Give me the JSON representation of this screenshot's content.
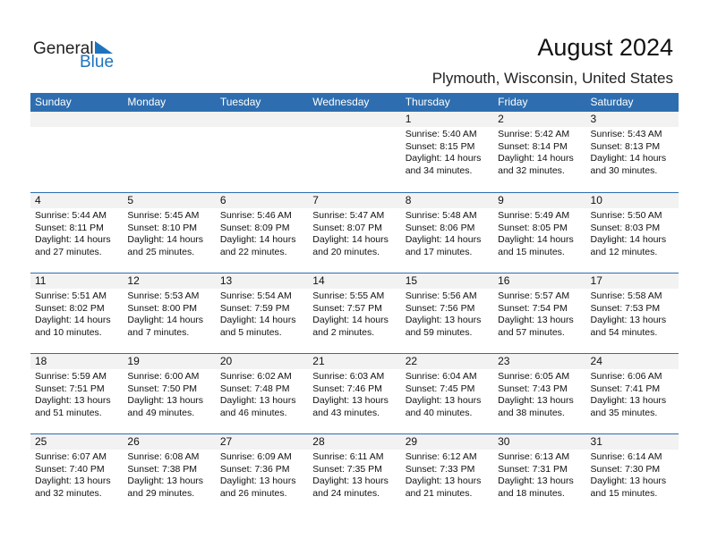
{
  "logo": {
    "general": "General",
    "blue": "Blue"
  },
  "title": "August 2024",
  "location": "Plymouth, Wisconsin, United States",
  "colors": {
    "header": "#2e6eb0",
    "band": "#f2f2f2",
    "logo_blue": "#1e73be"
  },
  "days_of_week": [
    "Sunday",
    "Monday",
    "Tuesday",
    "Wednesday",
    "Thursday",
    "Friday",
    "Saturday"
  ],
  "weeks": [
    [
      null,
      null,
      null,
      null,
      {
        "day": "1",
        "sunrise": "Sunrise: 5:40 AM",
        "sunset": "Sunset: 8:15 PM",
        "daylight1": "Daylight: 14 hours",
        "daylight2": "and 34 minutes."
      },
      {
        "day": "2",
        "sunrise": "Sunrise: 5:42 AM",
        "sunset": "Sunset: 8:14 PM",
        "daylight1": "Daylight: 14 hours",
        "daylight2": "and 32 minutes."
      },
      {
        "day": "3",
        "sunrise": "Sunrise: 5:43 AM",
        "sunset": "Sunset: 8:13 PM",
        "daylight1": "Daylight: 14 hours",
        "daylight2": "and 30 minutes."
      }
    ],
    [
      {
        "day": "4",
        "sunrise": "Sunrise: 5:44 AM",
        "sunset": "Sunset: 8:11 PM",
        "daylight1": "Daylight: 14 hours",
        "daylight2": "and 27 minutes."
      },
      {
        "day": "5",
        "sunrise": "Sunrise: 5:45 AM",
        "sunset": "Sunset: 8:10 PM",
        "daylight1": "Daylight: 14 hours",
        "daylight2": "and 25 minutes."
      },
      {
        "day": "6",
        "sunrise": "Sunrise: 5:46 AM",
        "sunset": "Sunset: 8:09 PM",
        "daylight1": "Daylight: 14 hours",
        "daylight2": "and 22 minutes."
      },
      {
        "day": "7",
        "sunrise": "Sunrise: 5:47 AM",
        "sunset": "Sunset: 8:07 PM",
        "daylight1": "Daylight: 14 hours",
        "daylight2": "and 20 minutes."
      },
      {
        "day": "8",
        "sunrise": "Sunrise: 5:48 AM",
        "sunset": "Sunset: 8:06 PM",
        "daylight1": "Daylight: 14 hours",
        "daylight2": "and 17 minutes."
      },
      {
        "day": "9",
        "sunrise": "Sunrise: 5:49 AM",
        "sunset": "Sunset: 8:05 PM",
        "daylight1": "Daylight: 14 hours",
        "daylight2": "and 15 minutes."
      },
      {
        "day": "10",
        "sunrise": "Sunrise: 5:50 AM",
        "sunset": "Sunset: 8:03 PM",
        "daylight1": "Daylight: 14 hours",
        "daylight2": "and 12 minutes."
      }
    ],
    [
      {
        "day": "11",
        "sunrise": "Sunrise: 5:51 AM",
        "sunset": "Sunset: 8:02 PM",
        "daylight1": "Daylight: 14 hours",
        "daylight2": "and 10 minutes."
      },
      {
        "day": "12",
        "sunrise": "Sunrise: 5:53 AM",
        "sunset": "Sunset: 8:00 PM",
        "daylight1": "Daylight: 14 hours",
        "daylight2": "and 7 minutes."
      },
      {
        "day": "13",
        "sunrise": "Sunrise: 5:54 AM",
        "sunset": "Sunset: 7:59 PM",
        "daylight1": "Daylight: 14 hours",
        "daylight2": "and 5 minutes."
      },
      {
        "day": "14",
        "sunrise": "Sunrise: 5:55 AM",
        "sunset": "Sunset: 7:57 PM",
        "daylight1": "Daylight: 14 hours",
        "daylight2": "and 2 minutes."
      },
      {
        "day": "15",
        "sunrise": "Sunrise: 5:56 AM",
        "sunset": "Sunset: 7:56 PM",
        "daylight1": "Daylight: 13 hours",
        "daylight2": "and 59 minutes."
      },
      {
        "day": "16",
        "sunrise": "Sunrise: 5:57 AM",
        "sunset": "Sunset: 7:54 PM",
        "daylight1": "Daylight: 13 hours",
        "daylight2": "and 57 minutes."
      },
      {
        "day": "17",
        "sunrise": "Sunrise: 5:58 AM",
        "sunset": "Sunset: 7:53 PM",
        "daylight1": "Daylight: 13 hours",
        "daylight2": "and 54 minutes."
      }
    ],
    [
      {
        "day": "18",
        "sunrise": "Sunrise: 5:59 AM",
        "sunset": "Sunset: 7:51 PM",
        "daylight1": "Daylight: 13 hours",
        "daylight2": "and 51 minutes."
      },
      {
        "day": "19",
        "sunrise": "Sunrise: 6:00 AM",
        "sunset": "Sunset: 7:50 PM",
        "daylight1": "Daylight: 13 hours",
        "daylight2": "and 49 minutes."
      },
      {
        "day": "20",
        "sunrise": "Sunrise: 6:02 AM",
        "sunset": "Sunset: 7:48 PM",
        "daylight1": "Daylight: 13 hours",
        "daylight2": "and 46 minutes."
      },
      {
        "day": "21",
        "sunrise": "Sunrise: 6:03 AM",
        "sunset": "Sunset: 7:46 PM",
        "daylight1": "Daylight: 13 hours",
        "daylight2": "and 43 minutes."
      },
      {
        "day": "22",
        "sunrise": "Sunrise: 6:04 AM",
        "sunset": "Sunset: 7:45 PM",
        "daylight1": "Daylight: 13 hours",
        "daylight2": "and 40 minutes."
      },
      {
        "day": "23",
        "sunrise": "Sunrise: 6:05 AM",
        "sunset": "Sunset: 7:43 PM",
        "daylight1": "Daylight: 13 hours",
        "daylight2": "and 38 minutes."
      },
      {
        "day": "24",
        "sunrise": "Sunrise: 6:06 AM",
        "sunset": "Sunset: 7:41 PM",
        "daylight1": "Daylight: 13 hours",
        "daylight2": "and 35 minutes."
      }
    ],
    [
      {
        "day": "25",
        "sunrise": "Sunrise: 6:07 AM",
        "sunset": "Sunset: 7:40 PM",
        "daylight1": "Daylight: 13 hours",
        "daylight2": "and 32 minutes."
      },
      {
        "day": "26",
        "sunrise": "Sunrise: 6:08 AM",
        "sunset": "Sunset: 7:38 PM",
        "daylight1": "Daylight: 13 hours",
        "daylight2": "and 29 minutes."
      },
      {
        "day": "27",
        "sunrise": "Sunrise: 6:09 AM",
        "sunset": "Sunset: 7:36 PM",
        "daylight1": "Daylight: 13 hours",
        "daylight2": "and 26 minutes."
      },
      {
        "day": "28",
        "sunrise": "Sunrise: 6:11 AM",
        "sunset": "Sunset: 7:35 PM",
        "daylight1": "Daylight: 13 hours",
        "daylight2": "and 24 minutes."
      },
      {
        "day": "29",
        "sunrise": "Sunrise: 6:12 AM",
        "sunset": "Sunset: 7:33 PM",
        "daylight1": "Daylight: 13 hours",
        "daylight2": "and 21 minutes."
      },
      {
        "day": "30",
        "sunrise": "Sunrise: 6:13 AM",
        "sunset": "Sunset: 7:31 PM",
        "daylight1": "Daylight: 13 hours",
        "daylight2": "and 18 minutes."
      },
      {
        "day": "31",
        "sunrise": "Sunrise: 6:14 AM",
        "sunset": "Sunset: 7:30 PM",
        "daylight1": "Daylight: 13 hours",
        "daylight2": "and 15 minutes."
      }
    ]
  ]
}
